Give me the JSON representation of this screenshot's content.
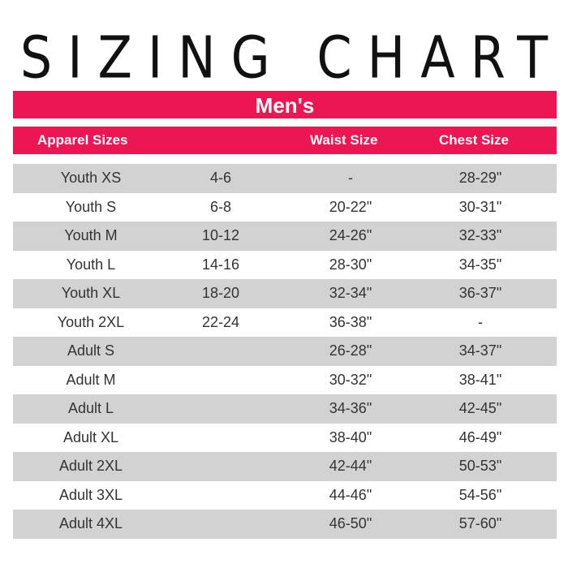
{
  "title": "SIZING CHART",
  "section": "Men's",
  "accent_color": "#ec1652",
  "headers": [
    "Apparel Sizes",
    "",
    "Waist Size",
    "Chest Size"
  ],
  "rows": [
    [
      "Youth XS",
      "4-6",
      "-",
      "28-29\""
    ],
    [
      "Youth S",
      "6-8",
      "20-22\"",
      "30-31\""
    ],
    [
      "Youth M",
      "10-12",
      "24-26\"",
      "32-33\""
    ],
    [
      "Youth L",
      "14-16",
      "28-30\"",
      "34-35\""
    ],
    [
      "Youth XL",
      "18-20",
      "32-34\"",
      "36-37\""
    ],
    [
      "Youth 2XL",
      "22-24",
      "36-38\"",
      "-"
    ],
    [
      "Adult S",
      "",
      "26-28\"",
      "34-37\""
    ],
    [
      "Adult M",
      "",
      "30-32\"",
      "38-41\""
    ],
    [
      "Adult L",
      "",
      "34-36\"",
      "42-45\""
    ],
    [
      "Adult XL",
      "",
      "38-40\"",
      "46-49\""
    ],
    [
      "Adult 2XL",
      "",
      "42-44\"",
      "50-53\""
    ],
    [
      "Adult 3XL",
      "",
      "44-46\"",
      "54-56\""
    ],
    [
      "Adult 4XL",
      "",
      "46-50\"",
      "57-60\""
    ]
  ]
}
